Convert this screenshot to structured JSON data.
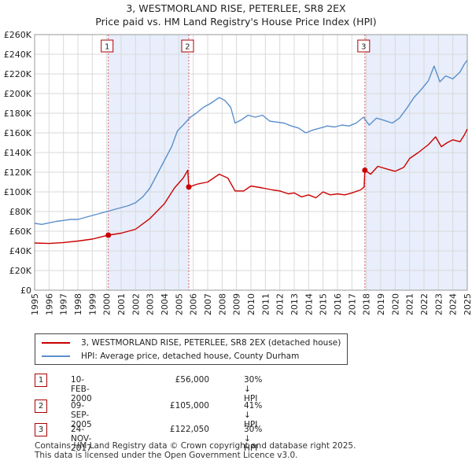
{
  "header": {
    "title": "3, WESTMORLAND RISE, PETERLEE, SR8 2EX",
    "subtitle": "Price paid vs. HM Land Registry's House Price Index (HPI)"
  },
  "chart_data": {
    "type": "line",
    "title": "3, WESTMORLAND RISE, PETERLEE, SR8 2EX",
    "subtitle": "Price paid vs. HM Land Registry's House Price Index (HPI)",
    "xlim": [
      1995,
      2025
    ],
    "ylim": [
      0,
      260000
    ],
    "y_ticks": [
      {
        "value": 0,
        "label": "£0"
      },
      {
        "value": 20000,
        "label": "£20K"
      },
      {
        "value": 40000,
        "label": "£40K"
      },
      {
        "value": 60000,
        "label": "£60K"
      },
      {
        "value": 80000,
        "label": "£80K"
      },
      {
        "value": 100000,
        "label": "£100K"
      },
      {
        "value": 120000,
        "label": "£120K"
      },
      {
        "value": 140000,
        "label": "£140K"
      },
      {
        "value": 160000,
        "label": "£160K"
      },
      {
        "value": 180000,
        "label": "£180K"
      },
      {
        "value": 200000,
        "label": "£200K"
      },
      {
        "value": 220000,
        "label": "£220K"
      },
      {
        "value": 240000,
        "label": "£240K"
      },
      {
        "value": 260000,
        "label": "£260K"
      }
    ],
    "x_ticks": [
      "1995",
      "1996",
      "1997",
      "1998",
      "1999",
      "2000",
      "2001",
      "2002",
      "2003",
      "2004",
      "2005",
      "2006",
      "2007",
      "2008",
      "2009",
      "2010",
      "2011",
      "2012",
      "2013",
      "2014",
      "2015",
      "2016",
      "2017",
      "2018",
      "2019",
      "2020",
      "2021",
      "2022",
      "2023",
      "2024",
      "2025"
    ],
    "grid": true,
    "shaded_spans": [
      [
        2000.11,
        2005.69
      ],
      [
        2017.9,
        2025
      ]
    ],
    "series": [
      {
        "name": "3, WESTMORLAND RISE, PETERLEE, SR8 2EX (detached house)",
        "color": "#cc0000",
        "points": [
          [
            1995.0,
            48000
          ],
          [
            1996.0,
            47500
          ],
          [
            1997.0,
            48500
          ],
          [
            1998.0,
            50000
          ],
          [
            1999.0,
            52000
          ],
          [
            2000.11,
            56000
          ],
          [
            2001.0,
            58000
          ],
          [
            2002.0,
            62000
          ],
          [
            2003.0,
            73000
          ],
          [
            2004.0,
            88000
          ],
          [
            2004.7,
            104000
          ],
          [
            2005.3,
            114000
          ],
          [
            2005.62,
            122000
          ],
          [
            2005.69,
            105000
          ],
          [
            2006.3,
            108000
          ],
          [
            2007.0,
            110000
          ],
          [
            2007.8,
            118000
          ],
          [
            2008.4,
            114000
          ],
          [
            2008.9,
            101000
          ],
          [
            2009.5,
            101000
          ],
          [
            2010.0,
            106000
          ],
          [
            2010.8,
            104000
          ],
          [
            2011.5,
            102000
          ],
          [
            2012.0,
            101000
          ],
          [
            2012.6,
            98000
          ],
          [
            2013.0,
            99000
          ],
          [
            2013.5,
            95000
          ],
          [
            2014.0,
            97000
          ],
          [
            2014.5,
            94000
          ],
          [
            2015.0,
            100000
          ],
          [
            2015.5,
            97000
          ],
          [
            2016.0,
            98000
          ],
          [
            2016.5,
            97000
          ],
          [
            2017.0,
            99000
          ],
          [
            2017.6,
            102000
          ],
          [
            2017.85,
            105000
          ],
          [
            2017.9,
            122050
          ],
          [
            2018.3,
            118000
          ],
          [
            2018.8,
            126000
          ],
          [
            2019.5,
            123000
          ],
          [
            2020.0,
            121000
          ],
          [
            2020.6,
            125000
          ],
          [
            2021.0,
            134000
          ],
          [
            2021.6,
            140000
          ],
          [
            2022.3,
            148000
          ],
          [
            2022.8,
            156000
          ],
          [
            2023.2,
            146000
          ],
          [
            2023.6,
            150000
          ],
          [
            2024.0,
            153000
          ],
          [
            2024.5,
            151000
          ],
          [
            2024.8,
            158000
          ],
          [
            2025.0,
            164000
          ]
        ]
      },
      {
        "name": "HPI: Average price, detached house, County Durham",
        "color": "#5b8fcc",
        "points": [
          [
            1995.0,
            68000
          ],
          [
            1995.5,
            67000
          ],
          [
            1996.0,
            68500
          ],
          [
            1996.5,
            70000
          ],
          [
            1997.0,
            71000
          ],
          [
            1997.5,
            72000
          ],
          [
            1998.0,
            72000
          ],
          [
            1998.5,
            74000
          ],
          [
            1999.0,
            76000
          ],
          [
            1999.5,
            78000
          ],
          [
            2000.0,
            80000
          ],
          [
            2000.5,
            82000
          ],
          [
            2001.0,
            84000
          ],
          [
            2001.5,
            86000
          ],
          [
            2002.0,
            89000
          ],
          [
            2002.5,
            95000
          ],
          [
            2003.0,
            104000
          ],
          [
            2003.5,
            118000
          ],
          [
            2004.0,
            132000
          ],
          [
            2004.5,
            146000
          ],
          [
            2004.9,
            162000
          ],
          [
            2005.3,
            168000
          ],
          [
            2005.8,
            176000
          ],
          [
            2006.2,
            180000
          ],
          [
            2006.7,
            186000
          ],
          [
            2007.2,
            190000
          ],
          [
            2007.8,
            196000
          ],
          [
            2008.2,
            193000
          ],
          [
            2008.6,
            186000
          ],
          [
            2008.9,
            170000
          ],
          [
            2009.3,
            173000
          ],
          [
            2009.8,
            178000
          ],
          [
            2010.3,
            176000
          ],
          [
            2010.8,
            178000
          ],
          [
            2011.3,
            172000
          ],
          [
            2011.8,
            171000
          ],
          [
            2012.3,
            170000
          ],
          [
            2012.8,
            167000
          ],
          [
            2013.3,
            165000
          ],
          [
            2013.8,
            160000
          ],
          [
            2014.3,
            163000
          ],
          [
            2014.8,
            165000
          ],
          [
            2015.3,
            167000
          ],
          [
            2015.8,
            166000
          ],
          [
            2016.3,
            168000
          ],
          [
            2016.8,
            167000
          ],
          [
            2017.3,
            170000
          ],
          [
            2017.8,
            176000
          ],
          [
            2018.2,
            168000
          ],
          [
            2018.7,
            175000
          ],
          [
            2019.2,
            173000
          ],
          [
            2019.8,
            170000
          ],
          [
            2020.3,
            175000
          ],
          [
            2020.8,
            185000
          ],
          [
            2021.3,
            196000
          ],
          [
            2021.8,
            204000
          ],
          [
            2022.3,
            213000
          ],
          [
            2022.7,
            228000
          ],
          [
            2023.1,
            212000
          ],
          [
            2023.5,
            218000
          ],
          [
            2024.0,
            215000
          ],
          [
            2024.5,
            222000
          ],
          [
            2024.8,
            230000
          ],
          [
            2025.0,
            234000
          ]
        ]
      }
    ],
    "transactions": [
      {
        "label": "1",
        "x": 2000.11,
        "price": 56000
      },
      {
        "label": "2",
        "x": 2005.69,
        "price": 105000
      },
      {
        "label": "3",
        "x": 2017.9,
        "price": 122050
      }
    ]
  },
  "legend": {
    "items": [
      {
        "label": "3, WESTMORLAND RISE, PETERLEE, SR8 2EX (detached house)",
        "color": "#cc0000"
      },
      {
        "label": "HPI: Average price, detached house, County Durham",
        "color": "#5b8fcc"
      }
    ]
  },
  "transactions_table": [
    {
      "num": "1",
      "date": "10-FEB-2000",
      "price": "£56,000",
      "hpi": "30% ↓ HPI"
    },
    {
      "num": "2",
      "date": "09-SEP-2005",
      "price": "£105,000",
      "hpi": "41% ↓ HPI"
    },
    {
      "num": "3",
      "date": "24-NOV-2017",
      "price": "£122,050",
      "hpi": "30% ↓ HPI"
    }
  ],
  "footer": {
    "line1": "Contains HM Land Registry data © Crown copyright and database right 2025.",
    "line2": "This data is licensed under the Open Government Licence v3.0."
  }
}
